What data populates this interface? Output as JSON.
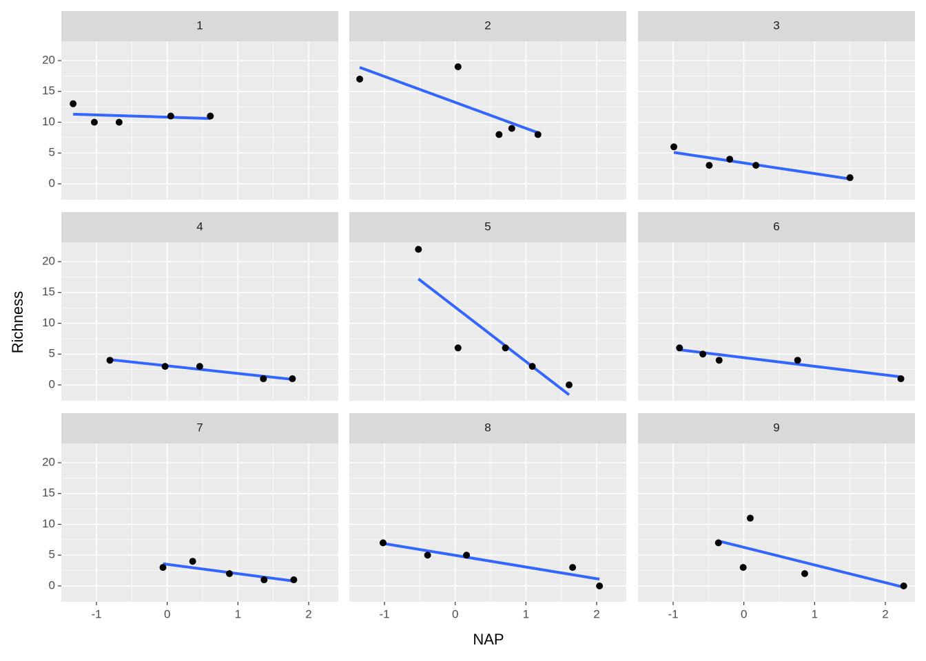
{
  "chart_data": {
    "type": "scatter",
    "x_label": "NAP",
    "y_label": "Richness",
    "xlim": [
      -1.497,
      2.419
    ],
    "ylim": [
      -2.57,
      23.13
    ],
    "xticks": [
      -1,
      0,
      1,
      2
    ],
    "yticks": [
      0,
      5,
      10,
      15,
      20
    ],
    "grid": true,
    "point_color": "#000000",
    "line_color": "#3366ff",
    "panels": [
      {
        "title": "1",
        "x": [
          -1.33,
          -1.03,
          -0.68,
          0.05,
          0.61
        ],
        "y": [
          13,
          10,
          10,
          11,
          11
        ],
        "fit_x": [
          -1.33,
          0.61
        ],
        "fit_y": [
          11.3,
          10.6
        ]
      },
      {
        "title": "2",
        "x": [
          -1.35,
          0.04,
          0.62,
          0.8,
          1.17
        ],
        "y": [
          17,
          19,
          8,
          9,
          8
        ],
        "fit_x": [
          -1.35,
          1.17
        ],
        "fit_y": [
          18.9,
          8.3
        ]
      },
      {
        "title": "3",
        "x": [
          -0.99,
          -0.49,
          -0.2,
          0.17,
          1.5
        ],
        "y": [
          6,
          3,
          4,
          3,
          1
        ],
        "fit_x": [
          -0.99,
          1.5
        ],
        "fit_y": [
          5.1,
          0.8
        ]
      },
      {
        "title": "4",
        "x": [
          -0.81,
          -0.03,
          0.46,
          1.36,
          1.77
        ],
        "y": [
          4,
          3,
          3,
          1,
          1
        ],
        "fit_x": [
          -0.81,
          1.77
        ],
        "fit_y": [
          4.1,
          0.9
        ]
      },
      {
        "title": "5",
        "x": [
          -0.52,
          0.04,
          0.71,
          1.09,
          1.61
        ],
        "y": [
          22,
          6,
          6,
          3,
          0
        ],
        "fit_x": [
          -0.52,
          1.61
        ],
        "fit_y": [
          17.2,
          -1.6
        ]
      },
      {
        "title": "6",
        "x": [
          -0.91,
          -0.58,
          -0.35,
          0.76,
          2.22
        ],
        "y": [
          6,
          5,
          4,
          4,
          1
        ],
        "fit_x": [
          -0.91,
          2.22
        ],
        "fit_y": [
          5.7,
          1.3
        ]
      },
      {
        "title": "7",
        "x": [
          -0.06,
          0.36,
          0.88,
          1.37,
          1.79
        ],
        "y": [
          3,
          4,
          2,
          1,
          1
        ],
        "fit_x": [
          -0.06,
          1.79
        ],
        "fit_y": [
          3.6,
          0.8
        ]
      },
      {
        "title": "8",
        "x": [
          -1.02,
          -0.39,
          0.16,
          1.66,
          2.04
        ],
        "y": [
          7,
          5,
          5,
          3,
          0
        ],
        "fit_x": [
          -1.02,
          2.04
        ],
        "fit_y": [
          6.9,
          1.1
        ]
      },
      {
        "title": "9",
        "x": [
          -0.36,
          -0.01,
          0.09,
          0.86,
          2.26
        ],
        "y": [
          7,
          3,
          11,
          2,
          0
        ],
        "fit_x": [
          -0.36,
          2.26
        ],
        "fit_y": [
          7.3,
          -0.2
        ]
      }
    ]
  }
}
